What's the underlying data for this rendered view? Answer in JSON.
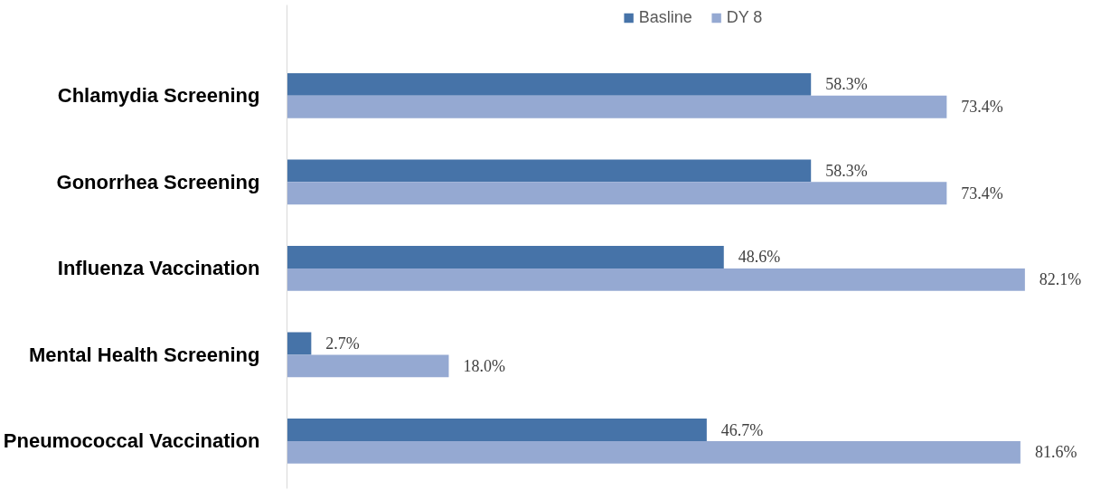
{
  "chart_data": {
    "type": "bar",
    "orientation": "horizontal",
    "categories": [
      "Chlamydia Screening",
      "Gonorrhea Screening",
      "Influenza Vaccination",
      "Mental Health Screening",
      "Pneumococcal Vaccination"
    ],
    "series": [
      {
        "name": "Basline",
        "color": "#4673a8",
        "values": [
          58.3,
          58.3,
          48.6,
          2.7,
          46.7
        ],
        "value_labels": [
          "58.3%",
          "58.3%",
          "48.6%",
          "2.7%",
          "46.7%"
        ]
      },
      {
        "name": "DY 8",
        "color": "#95a9d2",
        "values": [
          73.4,
          73.4,
          82.1,
          18.0,
          81.6
        ],
        "value_labels": [
          "73.4%",
          "73.4%",
          "82.1%",
          "18.0%",
          "81.6%"
        ]
      }
    ],
    "legend": "top",
    "grid": false
  }
}
